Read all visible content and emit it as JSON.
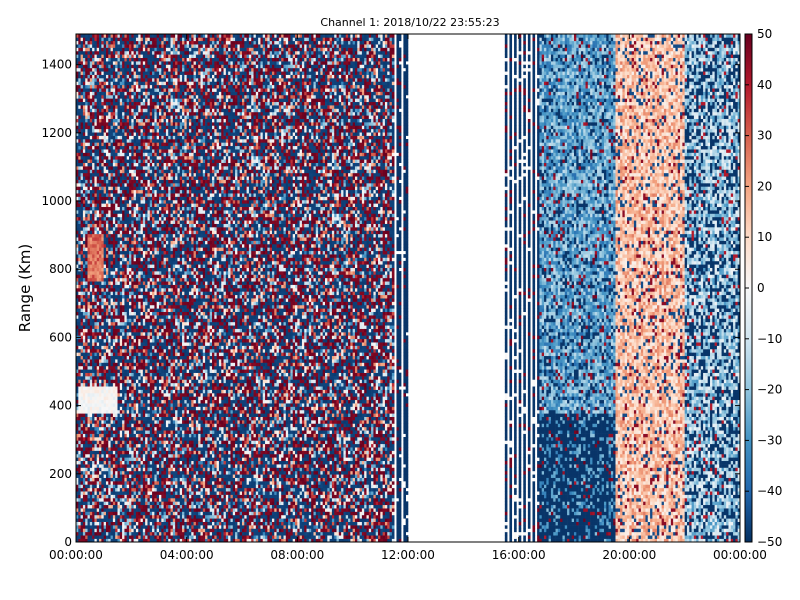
{
  "chart_data": {
    "type": "heatmap",
    "title": "Channel 1: 2018/10/22 23:55:23",
    "xlabel": "",
    "ylabel": "Range (Km)",
    "x_ticks": [
      "00:00:00",
      "04:00:00",
      "08:00:00",
      "12:00:00",
      "16:00:00",
      "20:00:00",
      "00:00:00"
    ],
    "y_ticks": [
      "0",
      "200",
      "400",
      "600",
      "800",
      "1000",
      "1200",
      "1400"
    ],
    "xlim": [
      "00:00:00",
      "00:00:00"
    ],
    "ylim": [
      0,
      1490
    ],
    "colorbar": {
      "ticks": [
        "50",
        "40",
        "30",
        "20",
        "10",
        "0",
        "−10",
        "−20",
        "−30",
        "−40",
        "−50"
      ],
      "range": [
        -50,
        50
      ],
      "colormap": "RdBu_r"
    },
    "grid": false,
    "description_of_data": {
      "00:00-11:30": "noise, values spread across the full -50 to 50 range",
      "11:30-12:00": "mostly -50 with gaps",
      "12:00-15:30": "no data (blank)",
      "15:30-16:45": "sparse columns of -50 values",
      "16:45-19:30": "-50 at low ranges, approximately -20 to -40 above 400 Km",
      "19:30-22:00": "positive band of roughly 10 to 25",
      "22:00-24:00": "mixture of about -10 to -50"
    }
  },
  "colors": {
    "background": "#ffffff",
    "frame": "#000000",
    "deep_negative": "#053061",
    "deep_positive": "#67001f",
    "neutral": "#f7f7f7"
  }
}
